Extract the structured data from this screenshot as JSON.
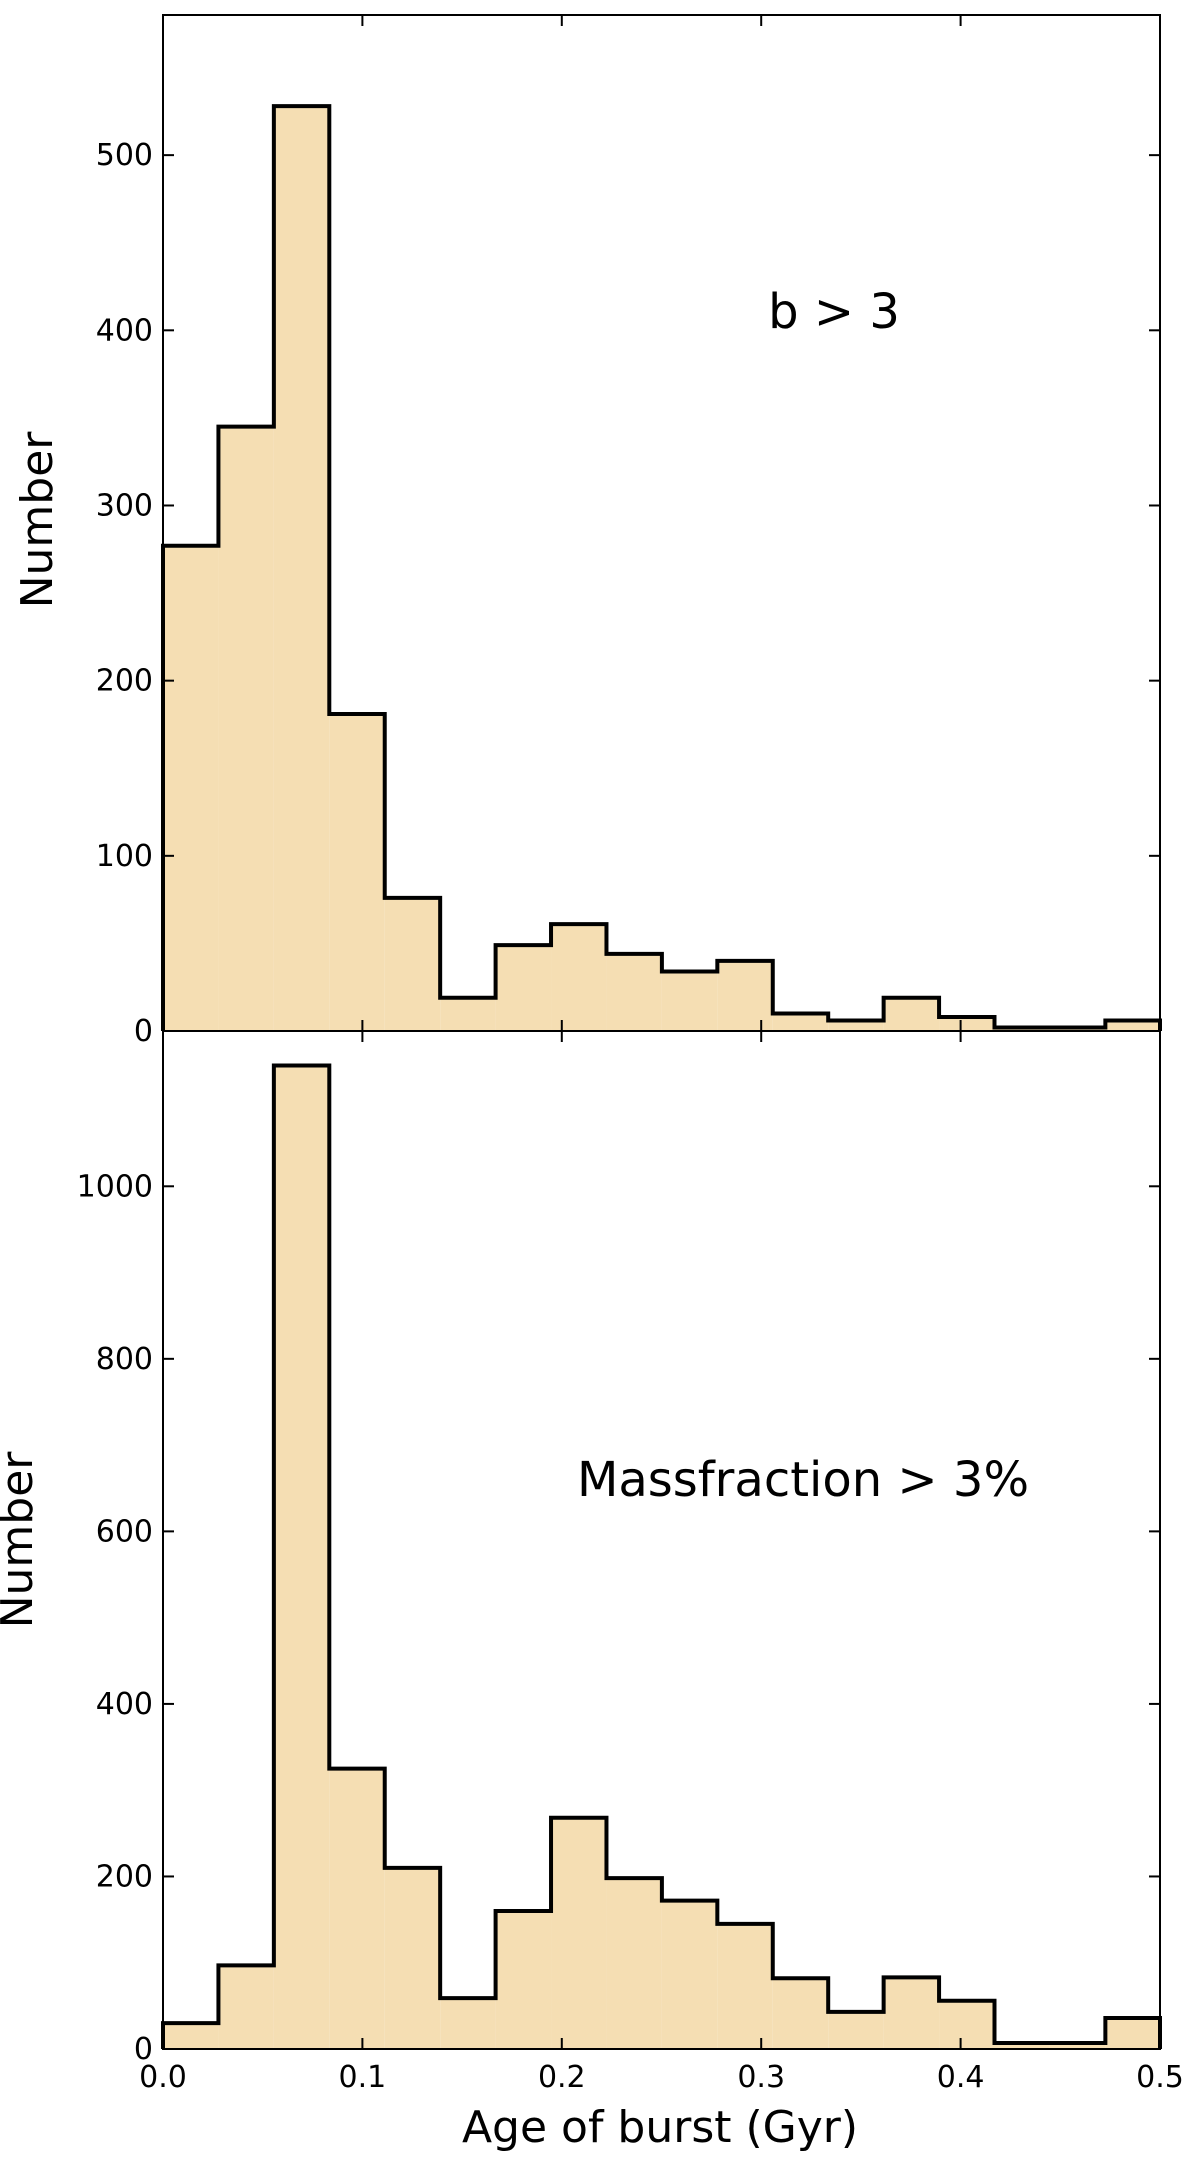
{
  "chart_data": [
    {
      "type": "histogram",
      "bin_width": 0.0278,
      "x_range": [
        0.0,
        0.5
      ],
      "xticks": [
        "0.0",
        "0.1",
        "0.2",
        "0.3",
        "0.4",
        "0.5"
      ],
      "ylim": [
        0,
        580
      ],
      "yticks": [
        "0",
        "100",
        "200",
        "300",
        "400",
        "500"
      ],
      "ylabel": "Number",
      "xlabel": "",
      "annotation": "b > 3",
      "fill_color": "#f5deb3",
      "edge_color": "#000000",
      "values": [
        277,
        345,
        528,
        181,
        76,
        19,
        49,
        61,
        44,
        34,
        40,
        10,
        6,
        19,
        8,
        2,
        2,
        6
      ]
    },
    {
      "type": "histogram",
      "bin_width": 0.0278,
      "x_range": [
        0.0,
        0.5
      ],
      "xticks": [
        "0.0",
        "0.1",
        "0.2",
        "0.3",
        "0.4",
        "0.5"
      ],
      "ylim": [
        0,
        1180
      ],
      "yticks": [
        "0",
        "200",
        "400",
        "600",
        "800",
        "1000"
      ],
      "ylabel": "Number",
      "xlabel": "Age of burst (Gyr)",
      "annotation": "Massfraction > 3%",
      "fill_color": "#f5deb3",
      "edge_color": "#000000",
      "values": [
        30,
        97,
        1140,
        325,
        210,
        59,
        160,
        268,
        198,
        172,
        145,
        82,
        43,
        83,
        56,
        7,
        7,
        36
      ]
    }
  ]
}
